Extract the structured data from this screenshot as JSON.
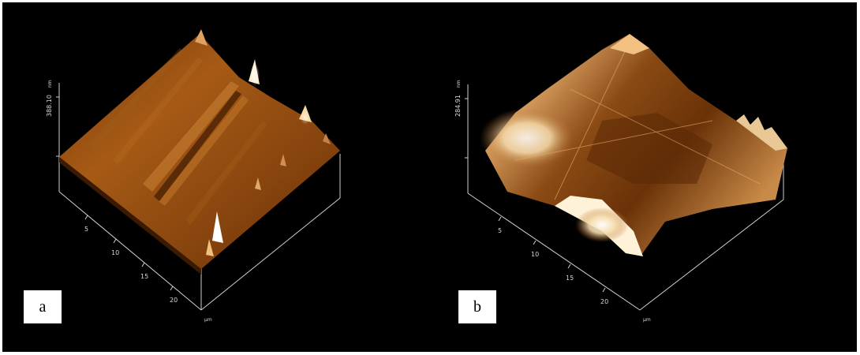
{
  "panels": [
    {
      "label": "a",
      "z_scale": "388.10",
      "z_unit": "nm",
      "ticks": [
        "5",
        "10",
        "15",
        "20"
      ],
      "xy_unit": "µm"
    },
    {
      "label": "b",
      "z_scale": "284.91",
      "z_unit": "nm",
      "ticks": [
        "5",
        "10",
        "15",
        "20"
      ],
      "xy_unit": "µm"
    }
  ],
  "colors": {
    "background": "#000000",
    "surface_dark": "#3a1800",
    "surface_mid": "#b5651d",
    "surface_light": "#fff3d6"
  }
}
